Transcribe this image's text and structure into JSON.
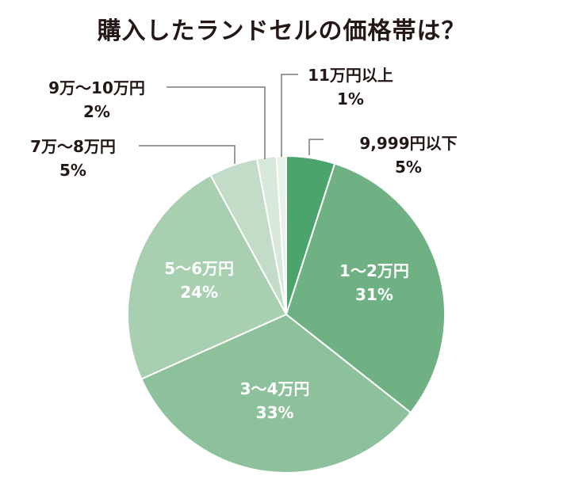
{
  "chart_data": {
    "type": "pie",
    "title": "購入したランドセルの価格帯は？",
    "slices": [
      {
        "label": "9,999円以下",
        "value": 5,
        "value_label": "5%",
        "color": "#4aa46b"
      },
      {
        "label": "1～2万円",
        "value": 31,
        "value_label": "31%",
        "color": "#6fb183"
      },
      {
        "label": "3～4万円",
        "value": 33,
        "value_label": "33%",
        "color": "#8dc19c"
      },
      {
        "label": "5～6万円",
        "value": 24,
        "value_label": "24%",
        "color": "#a8cfb0"
      },
      {
        "label": "7万～8万円",
        "value": 5,
        "value_label": "5%",
        "color": "#c2dcc7"
      },
      {
        "label": "9万～10万円",
        "value": 2,
        "value_label": "2%",
        "color": "#d8e8da"
      },
      {
        "label": "11万円以上",
        "value": 1,
        "value_label": "1%",
        "color": "#e8f2e9"
      }
    ]
  }
}
